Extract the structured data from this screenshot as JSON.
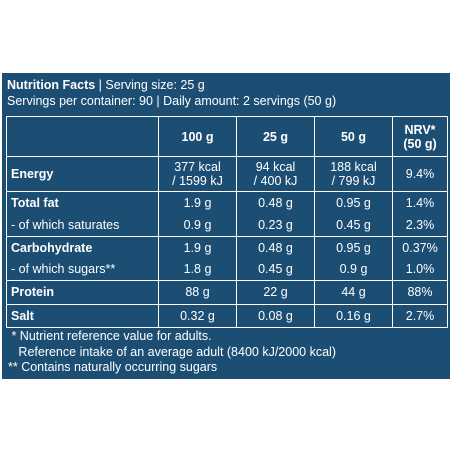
{
  "header": {
    "title": "Nutrition Facts",
    "serving": " | Serving size: 25 g",
    "line2": "Servings per container: 90 | Daily amount: 2 servings (50 g)"
  },
  "columns": [
    "",
    "100 g",
    "25 g",
    "50 g",
    "NRV* (50 g)"
  ],
  "nrv_header": {
    "line1": "NRV*",
    "line2": "(50 g)"
  },
  "rows": [
    {
      "label": "Energy",
      "v100": "377 kcal / 1599 kJ",
      "v25": "94 kcal / 400 kJ",
      "v50": "188 kcal / 799 kJ",
      "nrv": "9.4%"
    },
    {
      "label": "Total fat",
      "v100": "1.9 g",
      "v25": "0.48 g",
      "v50": "0.95 g",
      "nrv": "1.4%"
    },
    {
      "label": "- of which saturates",
      "v100": "0.9 g",
      "v25": "0.23 g",
      "v50": "0.45 g",
      "nrv": "2.3%"
    },
    {
      "label": "Carbohydrate",
      "v100": "1.9 g",
      "v25": "0.48 g",
      "v50": "0.95 g",
      "nrv": "0.37%"
    },
    {
      "label": "- of which sugars**",
      "v100": "1.8 g",
      "v25": "0.45 g",
      "v50": "0.9 g",
      "nrv": "1.0%"
    },
    {
      "label": "Protein",
      "v100": "88 g",
      "v25": "22 g",
      "v50": "44 g",
      "nrv": "88%"
    },
    {
      "label": "Salt",
      "v100": "0.32 g",
      "v25": "0.08 g",
      "v50": "0.16 g",
      "nrv": "2.7%"
    }
  ],
  "energy_split": {
    "v100": [
      "377 kcal",
      "/ 1599 kJ"
    ],
    "v25": [
      "94 kcal",
      "/ 400 kJ"
    ],
    "v50": [
      "188 kcal",
      "/ 799 kJ"
    ]
  },
  "footnotes": [
    " * Nutrient reference value for adults.",
    "   Reference intake of an average adult (8400 kJ/2000 kcal)",
    "** Contains naturally occurring sugars"
  ],
  "colors": {
    "panel": "#1c4e74",
    "text": "#ffffff",
    "background": "#ffffff"
  }
}
